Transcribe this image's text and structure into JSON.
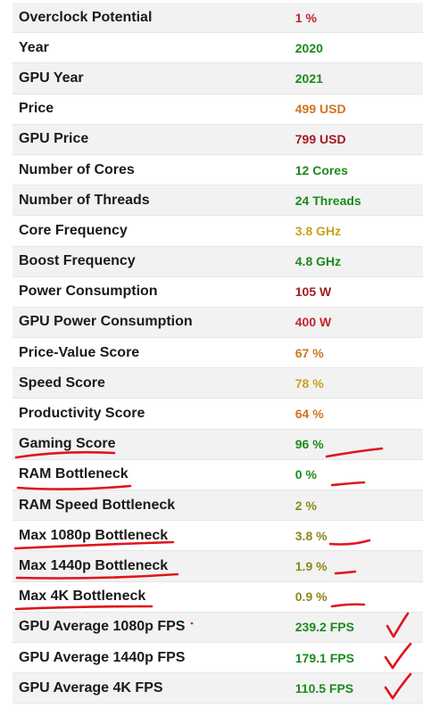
{
  "rows": [
    {
      "label": "Overclock Potential",
      "value": "1 %",
      "color": "c-red"
    },
    {
      "label": "Year",
      "value": "2020",
      "color": "c-green"
    },
    {
      "label": "GPU Year",
      "value": "2021",
      "color": "c-green"
    },
    {
      "label": "Price",
      "value": "499 USD",
      "color": "c-orange"
    },
    {
      "label": "GPU Price",
      "value": "799 USD",
      "color": "c-darkred"
    },
    {
      "label": "Number of Cores",
      "value": "12 Cores",
      "color": "c-green"
    },
    {
      "label": "Number of Threads",
      "value": "24 Threads",
      "color": "c-green"
    },
    {
      "label": "Core Frequency",
      "value": "3.8 GHz",
      "color": "c-yellow"
    },
    {
      "label": "Boost Frequency",
      "value": "4.8 GHz",
      "color": "c-green"
    },
    {
      "label": "Power Consumption",
      "value": "105 W",
      "color": "c-darkred"
    },
    {
      "label": "GPU Power Consumption",
      "value": "400 W",
      "color": "c-red"
    },
    {
      "label": "Price-Value Score",
      "value": "67 %",
      "color": "c-orange"
    },
    {
      "label": "Speed Score",
      "value": "78 %",
      "color": "c-yellow"
    },
    {
      "label": "Productivity Score",
      "value": "64 %",
      "color": "c-orange"
    },
    {
      "label": "Gaming Score",
      "value": "96 %",
      "color": "c-green"
    },
    {
      "label": "RAM Bottleneck",
      "value": "0 %",
      "color": "c-green"
    },
    {
      "label": "RAM Speed Bottleneck",
      "value": "2 %",
      "color": "c-olive"
    },
    {
      "label": "Max 1080p Bottleneck",
      "value": "3.8 %",
      "color": "c-olive"
    },
    {
      "label": "Max 1440p Bottleneck",
      "value": "1.9 %",
      "color": "c-olive"
    },
    {
      "label": "Max 4K Bottleneck",
      "value": "0.9 %",
      "color": "c-olive"
    },
    {
      "label": "GPU Average 1080p FPS",
      "value": "239.2 FPS",
      "color": "c-green"
    },
    {
      "label": "GPU Average 1440p FPS",
      "value": "179.1 FPS",
      "color": "c-green"
    },
    {
      "label": "GPU Average 4K FPS",
      "value": "110.5 FPS",
      "color": "c-green"
    }
  ]
}
